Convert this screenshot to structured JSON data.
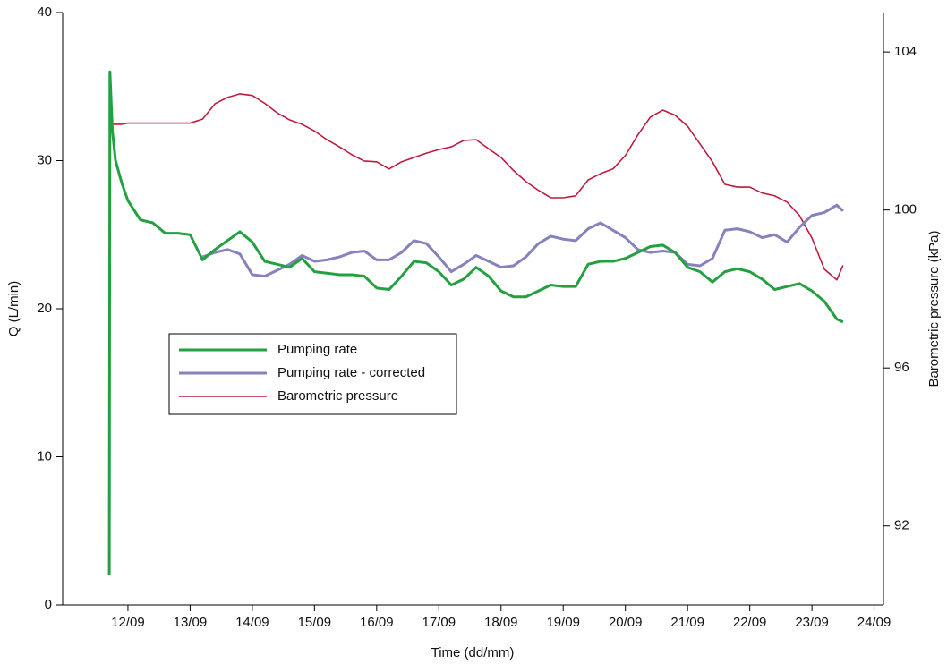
{
  "chart_data": {
    "type": "line",
    "x_label": "Time (dd/mm)",
    "y_label": "Q (L/min)",
    "y2_label": "Barometric pressure (kPa)",
    "xlim": [
      10.95,
      24.15
    ],
    "xticks": [
      {
        "value": 12,
        "label": "12/09"
      },
      {
        "value": 13,
        "label": "13/09"
      },
      {
        "value": 14,
        "label": "14/09"
      },
      {
        "value": 15,
        "label": "15/09"
      },
      {
        "value": 16,
        "label": "16/09"
      },
      {
        "value": 17,
        "label": "17/09"
      },
      {
        "value": 18,
        "label": "18/09"
      },
      {
        "value": 19,
        "label": "19/09"
      },
      {
        "value": 20,
        "label": "20/09"
      },
      {
        "value": 21,
        "label": "21/09"
      },
      {
        "value": 22,
        "label": "22/09"
      },
      {
        "value": 23,
        "label": "23/09"
      },
      {
        "value": 24,
        "label": "24/09"
      }
    ],
    "ylim": [
      0,
      40
    ],
    "yticks": [
      0,
      10,
      20,
      30,
      40
    ],
    "y2lim": [
      90,
      105
    ],
    "y2ticks": [
      92,
      96,
      100,
      104
    ],
    "grid": false,
    "x": [
      11.7,
      11.71,
      11.75,
      11.8,
      11.9,
      12.0,
      12.2,
      12.4,
      12.6,
      12.8,
      13.0,
      13.2,
      13.4,
      13.6,
      13.8,
      14.0,
      14.2,
      14.4,
      14.6,
      14.8,
      15.0,
      15.2,
      15.4,
      15.6,
      15.8,
      16.0,
      16.2,
      16.4,
      16.6,
      16.8,
      17.0,
      17.2,
      17.4,
      17.6,
      17.8,
      18.0,
      18.2,
      18.4,
      18.6,
      18.8,
      19.0,
      19.2,
      19.4,
      19.6,
      19.8,
      20.0,
      20.2,
      20.4,
      20.6,
      20.8,
      21.0,
      21.2,
      21.4,
      21.6,
      21.8,
      22.0,
      22.2,
      22.4,
      22.6,
      22.8,
      23.0,
      23.2,
      23.4,
      23.5
    ],
    "series": [
      {
        "name": "Pumping rate",
        "color": "#23a03f",
        "width": 3,
        "values": [
          2,
          36,
          32,
          30,
          28.5,
          27.3,
          26,
          25.8,
          25.1,
          25.1,
          25,
          23.3,
          24,
          24.6,
          25.2,
          24.5,
          23.2,
          23,
          22.8,
          23.4,
          22.5,
          22.4,
          22.3,
          22.3,
          22.2,
          21.4,
          21.3,
          22.2,
          23.2,
          23.1,
          22.5,
          21.6,
          22,
          22.8,
          22.2,
          21.2,
          20.8,
          20.8,
          21.2,
          21.6,
          21.5,
          21.5,
          23,
          23.2,
          23.2,
          23.4,
          23.8,
          24.2,
          24.3,
          23.8,
          22.8,
          22.5,
          21.8,
          22.5,
          22.7,
          22.5,
          22,
          21.3,
          21.5,
          21.7,
          21.2,
          20.5,
          19.3,
          19.1
        ]
      },
      {
        "name": "Pumping rate - corrected",
        "color": "#8582bd",
        "width": 3,
        "values": [
          null,
          null,
          null,
          null,
          null,
          null,
          null,
          null,
          null,
          null,
          null,
          23.5,
          23.8,
          24,
          23.7,
          22.3,
          22.2,
          22.6,
          23,
          23.6,
          23.2,
          23.3,
          23.5,
          23.8,
          23.9,
          23.3,
          23.3,
          23.8,
          24.6,
          24.4,
          23.5,
          22.5,
          23,
          23.6,
          23.2,
          22.8,
          22.9,
          23.5,
          24.4,
          24.9,
          24.7,
          24.6,
          25.4,
          25.8,
          25.3,
          24.8,
          24,
          23.8,
          23.9,
          23.8,
          23,
          22.9,
          23.4,
          25.3,
          25.4,
          25.2,
          24.8,
          25,
          24.5,
          25.5,
          26.3,
          26.5,
          27,
          26.6
        ]
      },
      {
        "name": "Barometric pressure",
        "color": "#c01a3c",
        "width": 1.6,
        "axis": "y2",
        "values": [
          102.17,
          102.17,
          102.17,
          102.17,
          102.17,
          102.2,
          102.2,
          102.2,
          102.2,
          102.2,
          102.2,
          102.3,
          102.69,
          102.85,
          102.94,
          102.9,
          102.7,
          102.46,
          102.28,
          102.17,
          102.0,
          101.78,
          101.6,
          101.4,
          101.24,
          101.22,
          101.04,
          101.22,
          101.33,
          101.44,
          101.53,
          101.6,
          101.76,
          101.78,
          101.55,
          101.33,
          101.0,
          100.72,
          100.5,
          100.31,
          100.31,
          100.36,
          100.76,
          100.92,
          101.04,
          101.38,
          101.9,
          102.35,
          102.53,
          102.4,
          102.12,
          101.67,
          101.22,
          100.65,
          100.58,
          100.58,
          100.43,
          100.36,
          100.2,
          99.86,
          99.29,
          98.5,
          98.23,
          98.6
        ]
      }
    ]
  }
}
